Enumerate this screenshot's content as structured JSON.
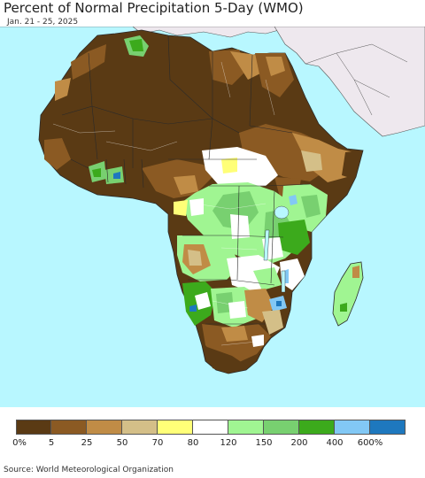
{
  "header": {
    "title": "Percent of Normal Precipitation 5-Day (WMO)",
    "subtitle": "Jan. 21 - 25, 2025"
  },
  "colors": {
    "ocean": "#b8f7ff",
    "non_region_land": "#eee8ee",
    "border": "#2a2a2a"
  },
  "legend": {
    "swatches": [
      "#5a3a14",
      "#8b5a23",
      "#c08c46",
      "#d4bf88",
      "#ffff78",
      "#ffffff",
      "#a0f592",
      "#78d070",
      "#3caa1c",
      "#82c8f5",
      "#1e78be"
    ],
    "ticks": [
      "0%",
      "5",
      "25",
      "50",
      "70",
      "80",
      "120",
      "150",
      "200",
      "400",
      "600%"
    ]
  },
  "footer": {
    "source": "Source: World Meteorological Organization"
  }
}
